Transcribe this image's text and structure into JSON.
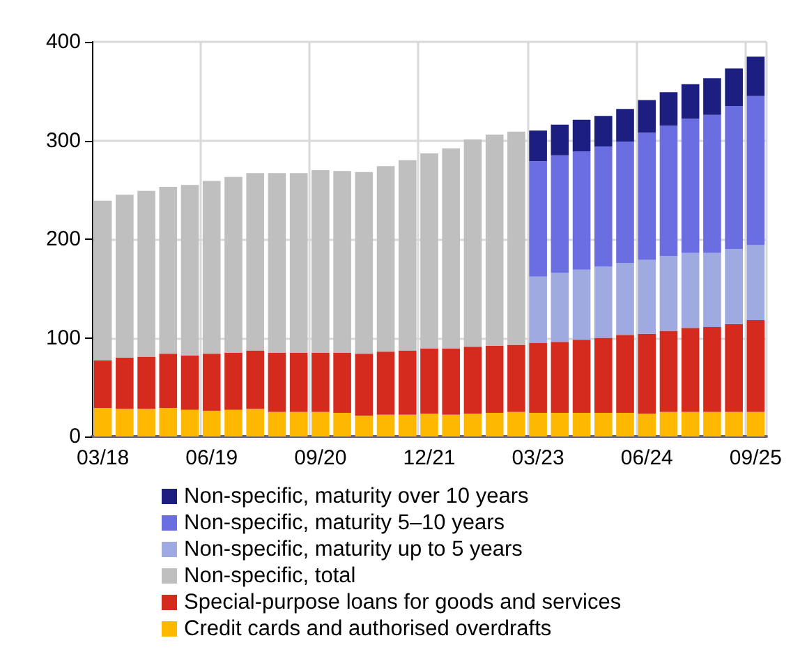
{
  "chart_data": {
    "type": "bar",
    "stacked": true,
    "grid": true,
    "legend": "bottom",
    "categories": [
      "03/18",
      null,
      null,
      null,
      null,
      "06/19",
      null,
      null,
      null,
      null,
      "09/20",
      null,
      null,
      null,
      null,
      "12/21",
      null,
      null,
      null,
      null,
      "03/23",
      null,
      null,
      null,
      null,
      "06/24",
      null,
      null,
      null,
      null,
      "09/25"
    ],
    "ylim": [
      0,
      400
    ],
    "yticks": [
      0,
      100,
      200,
      300,
      400
    ],
    "series": [
      {
        "name": "Credit cards and authorised overdrafts",
        "color": "#ffb800",
        "values": [
          29,
          28,
          28,
          29,
          27,
          26,
          27,
          28,
          25,
          25,
          25,
          24,
          21,
          22,
          22,
          23,
          22,
          23,
          24,
          25,
          24,
          24,
          24,
          24,
          24,
          23,
          25,
          25,
          25,
          25,
          25
        ]
      },
      {
        "name": "Special-purpose loans for goods and services",
        "color": "#d52b1e",
        "values": [
          48,
          52,
          53,
          55,
          55,
          58,
          58,
          59,
          60,
          60,
          60,
          61,
          63,
          64,
          65,
          66,
          67,
          68,
          68,
          68,
          71,
          72,
          74,
          76,
          79,
          81,
          82,
          85,
          86,
          89,
          93
        ]
      },
      {
        "name": "Non-specific, total",
        "color": "#bfbfbf",
        "values": [
          162,
          165,
          168,
          169,
          173,
          175,
          178,
          180,
          182,
          182,
          185,
          184,
          184,
          188,
          193,
          198,
          203,
          210,
          214,
          216,
          null,
          null,
          null,
          null,
          null,
          null,
          null,
          null,
          null,
          null,
          null
        ]
      },
      {
        "name": "Non-specific, maturity up to 5 years",
        "color": "#9eaae0",
        "values": [
          null,
          null,
          null,
          null,
          null,
          null,
          null,
          null,
          null,
          null,
          null,
          null,
          null,
          null,
          null,
          null,
          null,
          null,
          null,
          null,
          67,
          70,
          71,
          72,
          73,
          75,
          76,
          76,
          75,
          76,
          76
        ]
      },
      {
        "name": "Non-specific, maturity 5–10 years",
        "color": "#6a6ee0",
        "values": [
          null,
          null,
          null,
          null,
          null,
          null,
          null,
          null,
          null,
          null,
          null,
          null,
          null,
          null,
          null,
          null,
          null,
          null,
          null,
          null,
          117,
          119,
          120,
          122,
          123,
          129,
          132,
          136,
          140,
          145,
          151
        ]
      },
      {
        "name": "Non-specific, maturity over 10 years",
        "color": "#1c1f80",
        "values": [
          null,
          null,
          null,
          null,
          null,
          null,
          null,
          null,
          null,
          null,
          null,
          null,
          null,
          null,
          null,
          null,
          null,
          null,
          null,
          null,
          31,
          31,
          32,
          31,
          33,
          33,
          34,
          35,
          37,
          38,
          40
        ]
      }
    ]
  }
}
